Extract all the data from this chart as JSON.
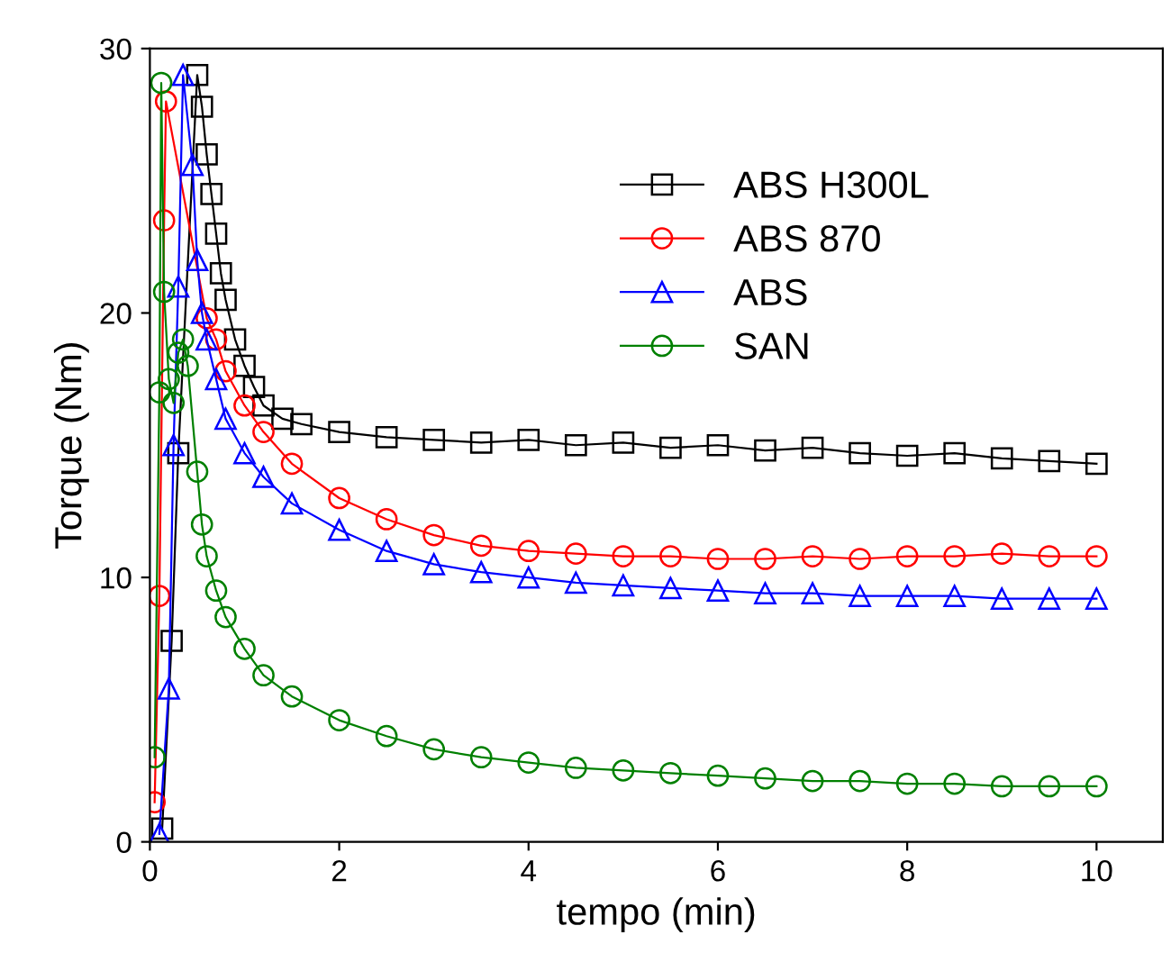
{
  "chart_data": {
    "type": "line",
    "xlabel": "tempo (min)",
    "ylabel": "Torque (Nm)",
    "xlim": [
      0,
      10.7
    ],
    "ylim": [
      0,
      30
    ],
    "xticks": [
      0,
      2,
      4,
      6,
      8,
      10
    ],
    "yticks": [
      0,
      10,
      20,
      30
    ],
    "grid": false,
    "legend": "top right",
    "series": [
      {
        "name": "ABS H300L",
        "color": "#000000",
        "marker": "square",
        "x": [
          0.13,
          0.23,
          0.3,
          0.5,
          0.55,
          0.6,
          0.65,
          0.7,
          0.75,
          0.8,
          0.9,
          1.0,
          1.1,
          1.2,
          1.4,
          1.6,
          2.0,
          2.5,
          3.0,
          3.5,
          4.0,
          4.5,
          5.0,
          5.5,
          6.0,
          6.5,
          7.0,
          7.5,
          8.0,
          8.5,
          9.0,
          9.5,
          10.0
        ],
        "values": [
          0.5,
          7.6,
          14.7,
          29,
          27.8,
          26,
          24.5,
          23,
          21.5,
          20.5,
          19,
          18,
          17.2,
          16.5,
          16,
          15.8,
          15.5,
          15.3,
          15.2,
          15.1,
          15.2,
          15,
          15.1,
          14.9,
          15,
          14.8,
          14.9,
          14.7,
          14.6,
          14.7,
          14.5,
          14.4,
          14.3
        ]
      },
      {
        "name": "ABS 870",
        "color": "#ff0000",
        "marker": "circle",
        "x": [
          0.05,
          0.1,
          0.15,
          0.17,
          0.6,
          0.7,
          0.8,
          1.0,
          1.2,
          1.5,
          2.0,
          2.5,
          3.0,
          3.5,
          4.0,
          4.5,
          5.0,
          5.5,
          6.0,
          6.5,
          7.0,
          7.5,
          8.0,
          8.5,
          9.0,
          9.5,
          10.0
        ],
        "values": [
          1.5,
          9.3,
          23.5,
          28,
          19.8,
          19,
          17.8,
          16.5,
          15.5,
          14.3,
          13,
          12.2,
          11.6,
          11.2,
          11,
          10.9,
          10.8,
          10.8,
          10.7,
          10.7,
          10.8,
          10.7,
          10.8,
          10.8,
          10.9,
          10.8,
          10.8
        ]
      },
      {
        "name": "ABS",
        "color": "#0000ff",
        "marker": "triangle",
        "x": [
          0.1,
          0.2,
          0.25,
          0.3,
          0.35,
          0.45,
          0.5,
          0.55,
          0.6,
          0.7,
          0.8,
          1.0,
          1.2,
          1.5,
          2.0,
          2.5,
          3.0,
          3.5,
          4.0,
          4.5,
          5.0,
          5.5,
          6.0,
          6.5,
          7.0,
          7.5,
          8.0,
          8.5,
          9.0,
          9.5,
          10.0
        ],
        "values": [
          0.3,
          5.8,
          15,
          21,
          29,
          25.6,
          22,
          20,
          19,
          17.5,
          16,
          14.7,
          13.8,
          12.8,
          11.8,
          11,
          10.5,
          10.2,
          10,
          9.8,
          9.7,
          9.6,
          9.5,
          9.4,
          9.4,
          9.3,
          9.3,
          9.3,
          9.2,
          9.2,
          9.2
        ]
      },
      {
        "name": "SAN",
        "color": "#008000",
        "marker": "circle",
        "x": [
          0.05,
          0.1,
          0.12,
          0.15,
          0.2,
          0.25,
          0.3,
          0.35,
          0.4,
          0.5,
          0.55,
          0.6,
          0.7,
          0.8,
          1.0,
          1.2,
          1.5,
          2.0,
          2.5,
          3.0,
          3.5,
          4.0,
          4.5,
          5.0,
          5.5,
          6.0,
          6.5,
          7.0,
          7.5,
          8.0,
          8.5,
          9.0,
          9.5,
          10.0
        ],
        "values": [
          3.2,
          17,
          28.7,
          20.8,
          17.5,
          16.6,
          18.5,
          19,
          18,
          14,
          12,
          10.8,
          9.5,
          8.5,
          7.3,
          6.3,
          5.5,
          4.6,
          4,
          3.5,
          3.2,
          3,
          2.8,
          2.7,
          2.6,
          2.5,
          2.4,
          2.3,
          2.3,
          2.2,
          2.2,
          2.1,
          2.1,
          2.1
        ]
      }
    ]
  }
}
